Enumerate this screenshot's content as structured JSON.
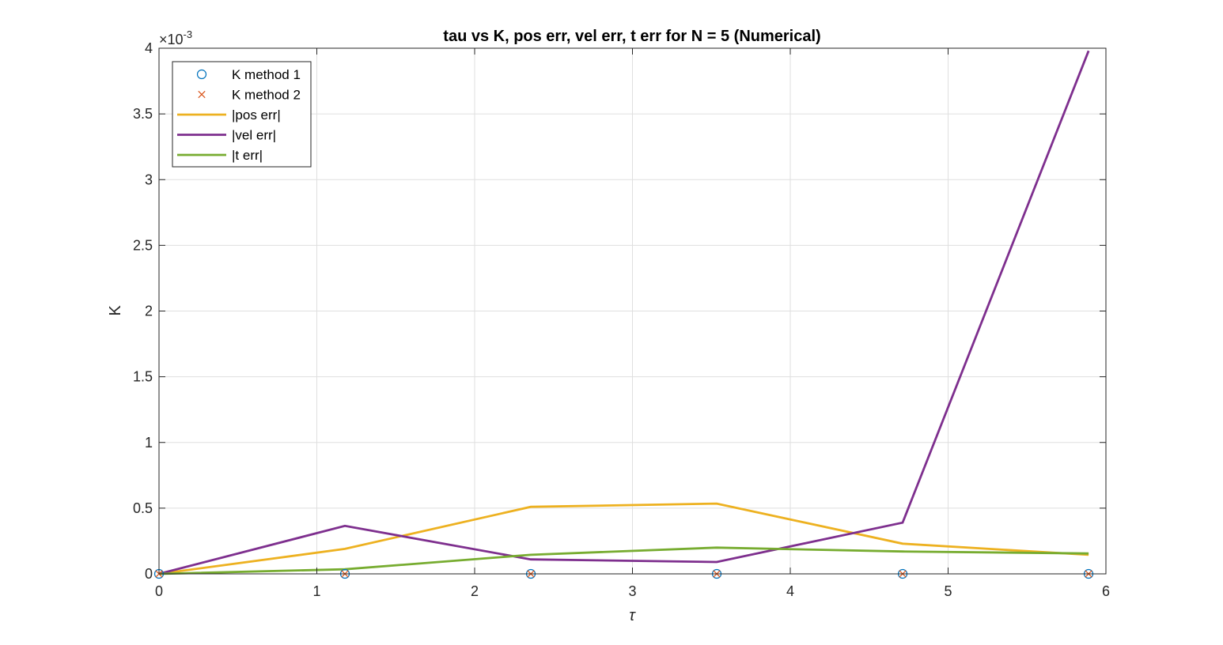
{
  "chart_data": {
    "type": "line",
    "title": "tau vs K, pos err, vel err, t err for N = 5 (Numerical)",
    "xlabel": "τ",
    "ylabel": "K",
    "y_exponent_label": "×10",
    "y_exponent_power": "-3",
    "xlim": [
      0,
      6
    ],
    "ylim": [
      0,
      4
    ],
    "x_ticks": [
      0,
      1,
      2,
      3,
      4,
      5,
      6
    ],
    "x_tick_labels": [
      "0",
      "1",
      "2",
      "3",
      "4",
      "5",
      "6"
    ],
    "y_ticks": [
      0,
      0.5,
      1,
      1.5,
      2,
      2.5,
      3,
      3.5,
      4
    ],
    "y_tick_labels": [
      "0",
      "0.5",
      "1",
      "1.5",
      "2",
      "2.5",
      "3",
      "3.5",
      "4"
    ],
    "grid": true,
    "legend_position": "top-left",
    "x": [
      0,
      1.178,
      2.356,
      3.534,
      4.712,
      5.89
    ],
    "series": [
      {
        "name": "K method 1",
        "style": "marker-o",
        "color": "#0072BD",
        "values": [
          0,
          0,
          0,
          0,
          0,
          0
        ]
      },
      {
        "name": "K method 2",
        "style": "marker-x",
        "color": "#D95319",
        "values": [
          0,
          0,
          0,
          0,
          0,
          0
        ]
      },
      {
        "name": "|pos err|",
        "style": "line",
        "color": "#EDB120",
        "values": [
          0,
          0.19,
          0.51,
          0.535,
          0.23,
          0.145
        ]
      },
      {
        "name": "|vel err|",
        "style": "line",
        "color": "#7E2F8E",
        "values": [
          0,
          0.365,
          0.11,
          0.09,
          0.39,
          3.98
        ]
      },
      {
        "name": "|t err|",
        "style": "line",
        "color": "#77AC30",
        "values": [
          0,
          0.035,
          0.145,
          0.2,
          0.17,
          0.155
        ]
      }
    ]
  }
}
